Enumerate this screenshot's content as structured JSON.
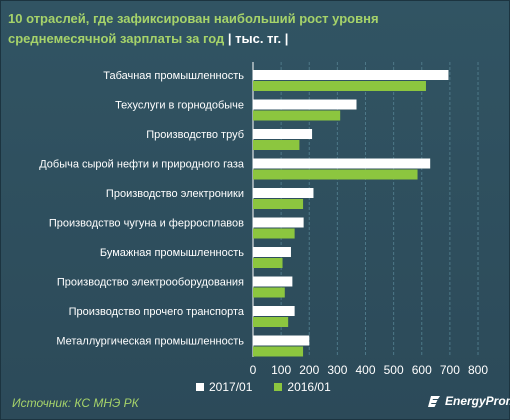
{
  "title": {
    "main": "10 отраслей,  где зафиксирован  наибольший  рост уровня  среднемесячной зарплаты  за год ",
    "unit": "| тыс. тг. |"
  },
  "source": "Источник: КС МНЭ РК",
  "brand": "EnergyProm",
  "colors": {
    "s2017": "#ffffff",
    "s2016": "#8cc63f",
    "grid": "#4d7888"
  },
  "chart_data": {
    "type": "bar",
    "orientation": "horizontal",
    "categories": [
      "Табачная промышленность",
      "Техуслуги в горнодобыче",
      "Производство труб",
      "Добыча сырой нефти и природного газа",
      "Производство электроники",
      "Производство чугуна и ферросплавов",
      "Бумажная промышленность",
      "Производство электрооборудования",
      "Производство прочего транспорта",
      "Металлургическая промышленность"
    ],
    "series": [
      {
        "name": "2017/01",
        "values": [
          695,
          368,
          210,
          630,
          215,
          180,
          135,
          140,
          148,
          200
        ]
      },
      {
        "name": "2016/01",
        "values": [
          615,
          310,
          165,
          585,
          178,
          148,
          105,
          113,
          125,
          178
        ]
      }
    ],
    "xlim": [
      0,
      800
    ],
    "xticks": [
      "0",
      "100",
      "200",
      "300",
      "400",
      "500",
      "600",
      "700",
      "800"
    ],
    "grid": true,
    "legend": "bottom"
  }
}
